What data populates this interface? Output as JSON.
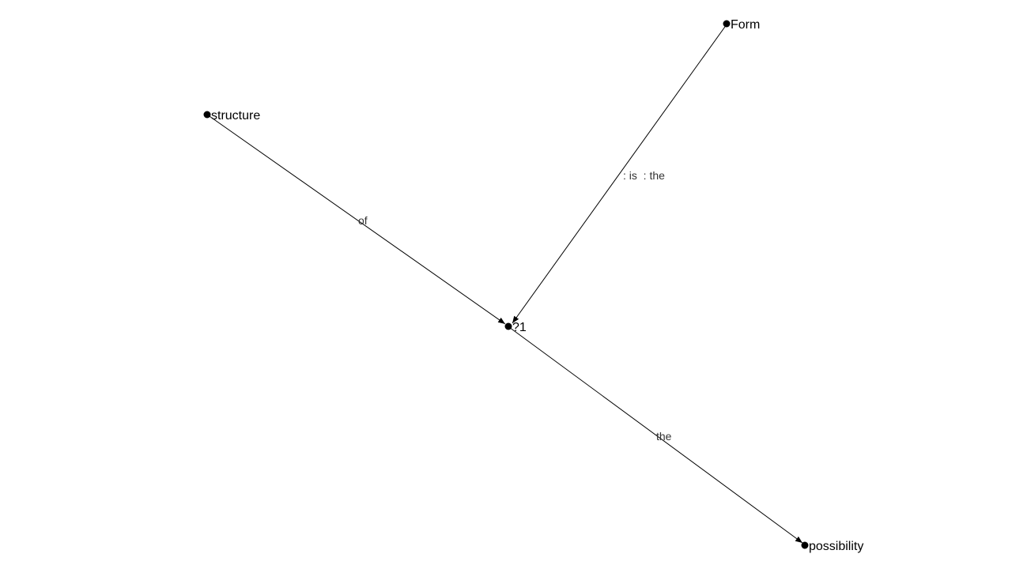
{
  "diagram": {
    "nodes": [
      {
        "id": "form",
        "label": "Form"
      },
      {
        "id": "structure",
        "label": "structure"
      },
      {
        "id": "q1",
        "label": "?1"
      },
      {
        "id": "possibility",
        "label": "possibility"
      }
    ],
    "edges": [
      {
        "id": "structure-q1",
        "from": "structure",
        "to": "q1",
        "label": "of"
      },
      {
        "id": "form-q1",
        "from": "form",
        "to": "q1",
        "label": ": is  : the"
      },
      {
        "id": "q1-possibility",
        "from": "q1",
        "to": "possibility",
        "label": "the"
      }
    ]
  }
}
